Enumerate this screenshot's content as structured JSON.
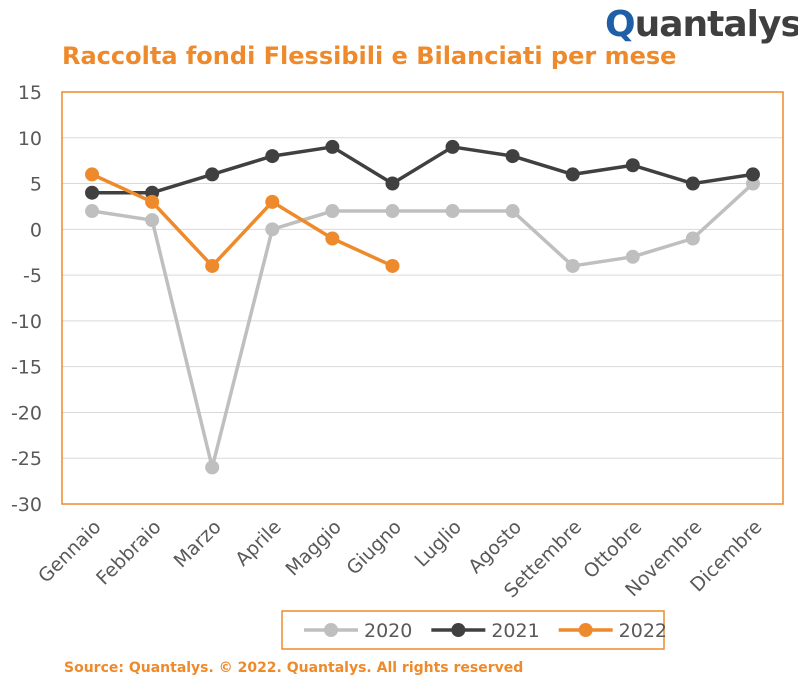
{
  "brand": {
    "logo_q": "Q",
    "logo_rest": "uantalys"
  },
  "title": "Raccolta fondi Flessibili e Bilanciati per mese",
  "source": "Source: Quantalys. © 2022. Quantalys. All rights reserved",
  "colors": {
    "accent": "#ee8a2b",
    "grid": "#d9d9d9",
    "axis": "#ee8a2b",
    "text": "#595959"
  },
  "chart_data": {
    "type": "line",
    "categories": [
      "Gennaio",
      "Febbraio",
      "Marzo",
      "Aprile",
      "Maggio",
      "Giugno",
      "Luglio",
      "Agosto",
      "Settembre",
      "Ottobre",
      "Novembre",
      "Dicembre"
    ],
    "series": [
      {
        "name": "2020",
        "color": "#bfbfbf",
        "values": [
          2,
          1,
          -26,
          0,
          2,
          2,
          2,
          2,
          -4,
          -3,
          -1,
          5
        ]
      },
      {
        "name": "2021",
        "color": "#404040",
        "values": [
          4,
          4,
          6,
          8,
          9,
          5,
          9,
          8,
          6,
          7,
          5,
          6
        ]
      },
      {
        "name": "2022",
        "color": "#ee8a2b",
        "values": [
          6,
          3,
          -4,
          3,
          -1,
          -4,
          null,
          null,
          null,
          null,
          null,
          null
        ]
      }
    ],
    "ylim": [
      -30,
      15
    ],
    "yticks": [
      15,
      10,
      5,
      0,
      -5,
      -10,
      -15,
      -20,
      -25,
      -30
    ],
    "grid": true,
    "legend_position": "bottom"
  }
}
